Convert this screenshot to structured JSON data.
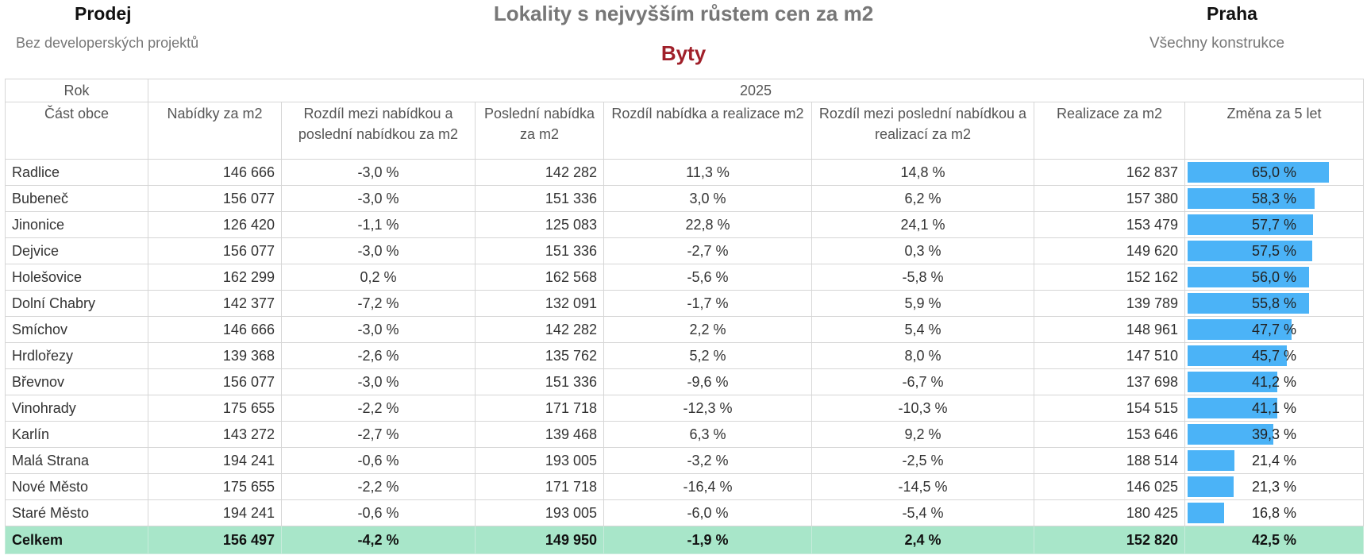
{
  "header": {
    "left_title": "Prodej",
    "left_subtitle": "Bez developerských projektů",
    "title": "Lokality s nejvyšším růstem cen za m2",
    "subtitle": "Byty",
    "right_title": "Praha",
    "right_subtitle": "Všechny konstrukce"
  },
  "colors": {
    "bar": "#4bb3f7",
    "total_row": "#a8e6c9",
    "subtitle": "#a0202a"
  },
  "chart_data": {
    "type": "table",
    "row_header_label": "Rok",
    "year": "2025",
    "columns": [
      "Část obce",
      "Nabídky za m2",
      "Rozdíl mezi nabídkou a poslední nabídkou za m2",
      "Poslední nabídka za m2",
      "Rozdíl nabídka a realizace m2",
      "Rozdíl mezi poslední nabídkou a realizací za m2",
      "Realizace za m2",
      "Změna za 5 let"
    ],
    "rows": [
      {
        "name": "Radlice",
        "offer": "146 666",
        "diff_offer_last": "-3,0 %",
        "last_offer": "142 282",
        "diff_offer_real": "11,3 %",
        "diff_last_real": "14,8 %",
        "realization": "162 837",
        "change5y": "65,0 %",
        "change5y_value": 65.0
      },
      {
        "name": "Bubeneč",
        "offer": "156 077",
        "diff_offer_last": "-3,0 %",
        "last_offer": "151 336",
        "diff_offer_real": "3,0 %",
        "diff_last_real": "6,2 %",
        "realization": "157 380",
        "change5y": "58,3 %",
        "change5y_value": 58.3
      },
      {
        "name": "Jinonice",
        "offer": "126 420",
        "diff_offer_last": "-1,1 %",
        "last_offer": "125 083",
        "diff_offer_real": "22,8 %",
        "diff_last_real": "24,1 %",
        "realization": "153 479",
        "change5y": "57,7 %",
        "change5y_value": 57.7
      },
      {
        "name": "Dejvice",
        "offer": "156 077",
        "diff_offer_last": "-3,0 %",
        "last_offer": "151 336",
        "diff_offer_real": "-2,7 %",
        "diff_last_real": "0,3 %",
        "realization": "149 620",
        "change5y": "57,5 %",
        "change5y_value": 57.5
      },
      {
        "name": "Holešovice",
        "offer": "162 299",
        "diff_offer_last": "0,2 %",
        "last_offer": "162 568",
        "diff_offer_real": "-5,6 %",
        "diff_last_real": "-5,8 %",
        "realization": "152 162",
        "change5y": "56,0 %",
        "change5y_value": 56.0
      },
      {
        "name": "Dolní Chabry",
        "offer": "142 377",
        "diff_offer_last": "-7,2 %",
        "last_offer": "132 091",
        "diff_offer_real": "-1,7 %",
        "diff_last_real": "5,9 %",
        "realization": "139 789",
        "change5y": "55,8 %",
        "change5y_value": 55.8
      },
      {
        "name": "Smíchov",
        "offer": "146 666",
        "diff_offer_last": "-3,0 %",
        "last_offer": "142 282",
        "diff_offer_real": "2,2 %",
        "diff_last_real": "5,4 %",
        "realization": "148 961",
        "change5y": "47,7 %",
        "change5y_value": 47.7
      },
      {
        "name": "Hrdlořezy",
        "offer": "139 368",
        "diff_offer_last": "-2,6 %",
        "last_offer": "135 762",
        "diff_offer_real": "5,2 %",
        "diff_last_real": "8,0 %",
        "realization": "147 510",
        "change5y": "45,7 %",
        "change5y_value": 45.7
      },
      {
        "name": "Břevnov",
        "offer": "156 077",
        "diff_offer_last": "-3,0 %",
        "last_offer": "151 336",
        "diff_offer_real": "-9,6 %",
        "diff_last_real": "-6,7 %",
        "realization": "137 698",
        "change5y": "41,2 %",
        "change5y_value": 41.2
      },
      {
        "name": "Vinohrady",
        "offer": "175 655",
        "diff_offer_last": "-2,2 %",
        "last_offer": "171 718",
        "diff_offer_real": "-12,3 %",
        "diff_last_real": "-10,3 %",
        "realization": "154 515",
        "change5y": "41,1 %",
        "change5y_value": 41.1
      },
      {
        "name": "Karlín",
        "offer": "143 272",
        "diff_offer_last": "-2,7 %",
        "last_offer": "139 468",
        "diff_offer_real": "6,3 %",
        "diff_last_real": "9,2 %",
        "realization": "153 646",
        "change5y": "39,3 %",
        "change5y_value": 39.3
      },
      {
        "name": "Malá Strana",
        "offer": "194 241",
        "diff_offer_last": "-0,6 %",
        "last_offer": "193 005",
        "diff_offer_real": "-3,2 %",
        "diff_last_real": "-2,5 %",
        "realization": "188 514",
        "change5y": "21,4 %",
        "change5y_value": 21.4
      },
      {
        "name": "Nové Město",
        "offer": "175 655",
        "diff_offer_last": "-2,2 %",
        "last_offer": "171 718",
        "diff_offer_real": "-16,4 %",
        "diff_last_real": "-14,5 %",
        "realization": "146 025",
        "change5y": "21,3 %",
        "change5y_value": 21.3
      },
      {
        "name": "Staré Město",
        "offer": "194 241",
        "diff_offer_last": "-0,6 %",
        "last_offer": "193 005",
        "diff_offer_real": "-6,0 %",
        "diff_last_real": "-5,4 %",
        "realization": "180 425",
        "change5y": "16,8 %",
        "change5y_value": 16.8
      }
    ],
    "total": {
      "name": "Celkem",
      "offer": "156 497",
      "diff_offer_last": "-4,2 %",
      "last_offer": "149 950",
      "diff_offer_real": "-1,9 %",
      "diff_last_real": "2,4 %",
      "realization": "152 820",
      "change5y": "42,5 %"
    },
    "bar_max": 65.0
  }
}
